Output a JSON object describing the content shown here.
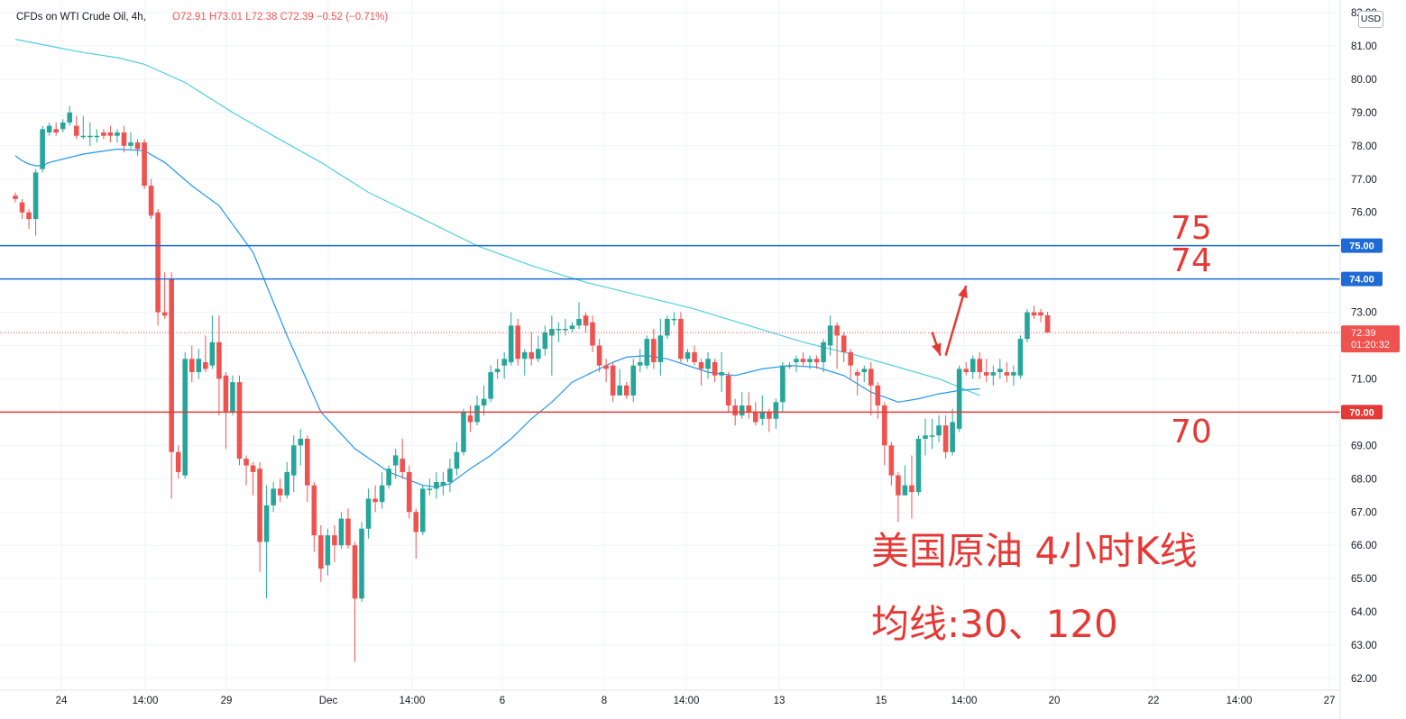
{
  "legend": {
    "symbol": "CFDs on WTI Crude Oil, 4h,",
    "open": "O72.91",
    "high": "H73.01",
    "low": "L72.38",
    "close": "C72.39",
    "change": "−0.52 (−0.71%)"
  },
  "currency_button": "USD",
  "annotations": {
    "level_75": "75",
    "level_74": "74",
    "level_70": "70",
    "title_line1": "美国原油 4小时K线",
    "title_line2": "均线:30、120"
  },
  "price_tags": {
    "current_price": "72.39",
    "countdown": "01:20:32",
    "line_75": "75.00",
    "line_74": "74.00",
    "line_70": "70.00"
  },
  "colors": {
    "up": "#26a69a",
    "down": "#ef5350",
    "ma30": "#2196f3",
    "ma120": "#4dd0e1",
    "line_blue": "#1e6bd6",
    "line_red": "#e53935",
    "annotation": "#e53935"
  },
  "chart_data": {
    "type": "candlestick",
    "interval": "4h",
    "ylim": [
      62.0,
      82.0
    ],
    "y_ticks": [
      "82.00",
      "81.00",
      "80.00",
      "79.00",
      "78.00",
      "77.00",
      "76.00",
      "75.00",
      "74.00",
      "73.00",
      "72.00",
      "71.00",
      "70.00",
      "69.00",
      "68.00",
      "67.00",
      "66.00",
      "65.00",
      "64.00",
      "63.00",
      "62.00"
    ],
    "x_ticks": [
      "24",
      "14:00",
      "29",
      "Dec",
      "14:00",
      "6",
      "8",
      "14:00",
      "13",
      "15",
      "14:00",
      "20",
      "22",
      "14:00",
      "27"
    ],
    "horizontal_lines": [
      {
        "value": 75.0,
        "color": "blue"
      },
      {
        "value": 74.0,
        "color": "blue"
      },
      {
        "value": 70.0,
        "color": "red"
      }
    ],
    "last_price": 72.39,
    "candles": [
      [
        76.5,
        76.4,
        76.6,
        76.3
      ],
      [
        76.3,
        76.0,
        76.4,
        75.8
      ],
      [
        76.0,
        75.8,
        76.1,
        75.5
      ],
      [
        75.8,
        77.2,
        77.3,
        75.3
      ],
      [
        77.3,
        78.5,
        78.6,
        77.2
      ],
      [
        78.4,
        78.6,
        78.7,
        78.3
      ],
      [
        78.5,
        78.4,
        78.7,
        78.3
      ],
      [
        78.5,
        78.7,
        78.8,
        78.4
      ],
      [
        78.7,
        79.0,
        79.2,
        78.6
      ],
      [
        78.6,
        78.3,
        78.9,
        78.2
      ],
      [
        78.3,
        78.3,
        78.9,
        78.2
      ],
      [
        78.3,
        78.3,
        78.7,
        78.0
      ],
      [
        78.3,
        78.3,
        78.5,
        78.1
      ],
      [
        78.4,
        78.3,
        78.5,
        78.2
      ],
      [
        78.4,
        78.3,
        78.6,
        78.1
      ],
      [
        78.3,
        78.4,
        78.5,
        78.1
      ],
      [
        78.4,
        78.0,
        78.6,
        77.8
      ],
      [
        78.0,
        78.1,
        78.4,
        77.9
      ],
      [
        78.1,
        77.9,
        78.2,
        77.7
      ],
      [
        78.1,
        76.8,
        78.2,
        76.7
      ],
      [
        76.8,
        75.9,
        77.0,
        75.8
      ],
      [
        76.0,
        73.0,
        76.1,
        72.6
      ],
      [
        73.0,
        72.9,
        74.2,
        72.8
      ],
      [
        74.0,
        68.8,
        74.2,
        67.4
      ],
      [
        68.8,
        68.2,
        69.0,
        68.0
      ],
      [
        68.1,
        71.6,
        71.8,
        68.0
      ],
      [
        71.6,
        71.2,
        72.0,
        70.9
      ],
      [
        71.2,
        71.6,
        71.9,
        71.0
      ],
      [
        71.5,
        71.3,
        72.3,
        71.2
      ],
      [
        71.4,
        72.1,
        72.9,
        71.3
      ],
      [
        72.1,
        71.0,
        72.9,
        69.9
      ],
      [
        71.1,
        70.0,
        71.2,
        68.9
      ],
      [
        70.0,
        70.9,
        71.1,
        69.9
      ],
      [
        70.9,
        68.6,
        71.1,
        68.4
      ],
      [
        68.6,
        68.4,
        68.7,
        67.8
      ],
      [
        68.4,
        68.2,
        68.5,
        67.5
      ],
      [
        68.3,
        66.1,
        68.5,
        65.2
      ],
      [
        66.1,
        67.2,
        67.8,
        64.4
      ],
      [
        67.2,
        67.7,
        67.9,
        67.0
      ],
      [
        67.7,
        67.5,
        68.0,
        67.3
      ],
      [
        67.5,
        68.2,
        68.5,
        67.4
      ],
      [
        68.1,
        69.0,
        69.3,
        67.6
      ],
      [
        69.0,
        69.2,
        69.5,
        68.4
      ],
      [
        69.2,
        67.8,
        69.3,
        67.3
      ],
      [
        67.8,
        66.3,
        67.9,
        65.8
      ],
      [
        66.3,
        65.3,
        66.6,
        64.9
      ],
      [
        65.4,
        66.3,
        66.5,
        65.1
      ],
      [
        66.3,
        66.0,
        66.6,
        65.5
      ],
      [
        66.0,
        66.8,
        67.0,
        65.9
      ],
      [
        66.8,
        66.0,
        67.1,
        65.9
      ],
      [
        66.0,
        64.4,
        66.1,
        62.5
      ],
      [
        64.4,
        66.5,
        66.7,
        64.3
      ],
      [
        66.5,
        67.4,
        67.7,
        66.2
      ],
      [
        67.4,
        67.3,
        67.8,
        67.0
      ],
      [
        67.3,
        67.8,
        68.2,
        67.1
      ],
      [
        67.8,
        68.3,
        68.4,
        67.7
      ],
      [
        68.4,
        68.7,
        68.9,
        68.0
      ],
      [
        68.6,
        68.2,
        69.2,
        68.0
      ],
      [
        68.2,
        67.0,
        68.4,
        66.8
      ],
      [
        67.0,
        66.4,
        67.1,
        65.6
      ],
      [
        66.4,
        67.7,
        67.8,
        66.3
      ],
      [
        67.7,
        67.7,
        68.0,
        67.5
      ],
      [
        67.7,
        67.9,
        68.2,
        67.4
      ],
      [
        67.8,
        67.9,
        68.2,
        67.5
      ],
      [
        67.9,
        68.3,
        68.6,
        67.6
      ],
      [
        68.3,
        68.8,
        69.1,
        68.1
      ],
      [
        68.8,
        70.0,
        70.1,
        68.7
      ],
      [
        69.9,
        69.7,
        70.2,
        69.4
      ],
      [
        69.7,
        70.2,
        70.5,
        69.6
      ],
      [
        70.2,
        70.4,
        70.8,
        69.9
      ],
      [
        70.4,
        71.2,
        71.4,
        70.3
      ],
      [
        71.2,
        71.3,
        71.6,
        71.0
      ],
      [
        71.4,
        71.6,
        71.8,
        71.0
      ],
      [
        71.5,
        72.6,
        73.0,
        71.4
      ],
      [
        72.6,
        71.6,
        72.8,
        71.4
      ],
      [
        71.6,
        71.8,
        71.9,
        71.1
      ],
      [
        71.8,
        71.6,
        72.4,
        71.4
      ],
      [
        71.6,
        71.9,
        72.3,
        71.5
      ],
      [
        71.9,
        72.4,
        72.6,
        71.7
      ],
      [
        72.3,
        72.5,
        72.9,
        71.1
      ],
      [
        72.5,
        72.5,
        72.7,
        72.1
      ],
      [
        72.5,
        72.5,
        72.8,
        72.3
      ],
      [
        72.5,
        72.6,
        72.7,
        72.4
      ],
      [
        72.6,
        72.8,
        73.3,
        72.5
      ],
      [
        72.9,
        72.6,
        73.0,
        72.4
      ],
      [
        72.7,
        72.0,
        72.9,
        71.8
      ],
      [
        72.0,
        71.4,
        72.2,
        71.2
      ],
      [
        71.4,
        71.3,
        71.6,
        70.9
      ],
      [
        71.4,
        70.5,
        71.5,
        70.3
      ],
      [
        70.5,
        70.8,
        71.3,
        70.5
      ],
      [
        70.8,
        70.5,
        70.9,
        70.4
      ],
      [
        70.5,
        71.4,
        71.6,
        70.3
      ],
      [
        71.4,
        71.5,
        71.9,
        71.2
      ],
      [
        71.4,
        72.2,
        72.3,
        71.3
      ],
      [
        72.2,
        71.5,
        72.5,
        71.3
      ],
      [
        71.5,
        72.3,
        72.8,
        71.1
      ],
      [
        72.3,
        72.8,
        72.9,
        72.2
      ],
      [
        72.8,
        72.8,
        73.0,
        72.6
      ],
      [
        72.8,
        71.6,
        73.0,
        71.5
      ],
      [
        71.6,
        71.8,
        71.9,
        71.5
      ],
      [
        71.8,
        71.5,
        72.0,
        71.4
      ],
      [
        71.5,
        71.3,
        71.6,
        70.8
      ],
      [
        71.3,
        71.6,
        71.8,
        71.0
      ],
      [
        71.5,
        71.1,
        71.6,
        70.9
      ],
      [
        71.1,
        71.2,
        71.8,
        70.6
      ],
      [
        71.1,
        70.2,
        71.2,
        70.0
      ],
      [
        70.2,
        69.9,
        70.4,
        69.6
      ],
      [
        69.9,
        70.2,
        70.6,
        69.8
      ],
      [
        70.2,
        70.0,
        70.6,
        69.8
      ],
      [
        70.0,
        69.7,
        70.3,
        69.6
      ],
      [
        69.8,
        70.0,
        70.5,
        69.6
      ],
      [
        70.0,
        69.8,
        70.1,
        69.4
      ],
      [
        69.8,
        70.3,
        70.4,
        69.5
      ],
      [
        70.3,
        71.4,
        71.5,
        70.0
      ],
      [
        71.4,
        71.4,
        71.5,
        71.3
      ],
      [
        71.5,
        71.6,
        71.7,
        71.2
      ],
      [
        71.6,
        71.5,
        71.8,
        71.4
      ],
      [
        71.5,
        71.6,
        71.7,
        71.3
      ],
      [
        71.6,
        71.5,
        71.7,
        71.3
      ],
      [
        71.5,
        72.1,
        72.2,
        71.2
      ],
      [
        72.0,
        72.6,
        72.9,
        71.7
      ],
      [
        72.6,
        72.3,
        72.7,
        71.3
      ],
      [
        72.3,
        71.8,
        72.4,
        71.5
      ],
      [
        71.8,
        71.4,
        71.9,
        71.0
      ],
      [
        71.2,
        71.1,
        71.3,
        70.5
      ],
      [
        71.2,
        71.3,
        71.4,
        70.9
      ],
      [
        71.3,
        70.8,
        71.5,
        69.9
      ],
      [
        70.8,
        70.2,
        70.9,
        69.8
      ],
      [
        70.2,
        69.0,
        70.3,
        68.4
      ],
      [
        69.0,
        68.1,
        69.1,
        67.8
      ],
      [
        68.1,
        67.5,
        68.2,
        66.7
      ],
      [
        67.5,
        67.8,
        68.4,
        67.5
      ],
      [
        67.8,
        67.6,
        68.7,
        66.8
      ],
      [
        67.6,
        69.2,
        69.3,
        67.5
      ],
      [
        69.2,
        69.3,
        69.8,
        68.7
      ],
      [
        69.3,
        69.3,
        69.8,
        68.9
      ],
      [
        69.3,
        69.6,
        69.9,
        69.1
      ],
      [
        69.6,
        68.8,
        69.9,
        68.6
      ],
      [
        68.8,
        69.7,
        70.1,
        68.7
      ],
      [
        69.5,
        71.3,
        71.4,
        69.4
      ],
      [
        71.3,
        71.2,
        71.5,
        71.1
      ],
      [
        71.2,
        71.6,
        71.7,
        71.0
      ],
      [
        71.6,
        71.2,
        71.8,
        71.0
      ],
      [
        71.2,
        71.1,
        71.6,
        70.9
      ],
      [
        71.1,
        71.2,
        71.4,
        70.8
      ],
      [
        71.2,
        71.3,
        71.6,
        71.0
      ],
      [
        71.2,
        71.1,
        71.5,
        70.9
      ],
      [
        71.1,
        71.2,
        71.4,
        70.8
      ],
      [
        71.1,
        72.2,
        72.3,
        71.0
      ],
      [
        72.2,
        73.0,
        73.1,
        72.1
      ],
      [
        73.0,
        72.9,
        73.2,
        72.8
      ],
      [
        73.0,
        72.9,
        73.1,
        72.7
      ],
      [
        72.91,
        72.39,
        73.01,
        72.38
      ]
    ],
    "ma30": [
      [
        0,
        77.7
      ],
      [
        1,
        77.55
      ],
      [
        2,
        77.45
      ],
      [
        3,
        77.4
      ],
      [
        4,
        77.4
      ],
      [
        5,
        77.5
      ],
      [
        10,
        77.75
      ],
      [
        15,
        77.9
      ],
      [
        19,
        77.85
      ],
      [
        22,
        77.5
      ],
      [
        26,
        76.8
      ],
      [
        30,
        76.2
      ],
      [
        35,
        74.8
      ],
      [
        40,
        72.3
      ],
      [
        45,
        70.0
      ],
      [
        50,
        68.9
      ],
      [
        55,
        68.2
      ],
      [
        60,
        67.8
      ],
      [
        62,
        67.75
      ],
      [
        64,
        67.85
      ],
      [
        67,
        68.3
      ],
      [
        70,
        68.7
      ],
      [
        73,
        69.2
      ],
      [
        76,
        69.8
      ],
      [
        79,
        70.3
      ],
      [
        82,
        70.9
      ],
      [
        85,
        71.2
      ],
      [
        88,
        71.5
      ],
      [
        90,
        71.65
      ],
      [
        93,
        71.7
      ],
      [
        96,
        71.6
      ],
      [
        99,
        71.4
      ],
      [
        102,
        71.2
      ],
      [
        106,
        71.1
      ],
      [
        110,
        71.3
      ],
      [
        114,
        71.4
      ],
      [
        118,
        71.35
      ],
      [
        122,
        71.1
      ],
      [
        126,
        70.6
      ],
      [
        130,
        70.3
      ],
      [
        133,
        70.4
      ],
      [
        136,
        70.55
      ],
      [
        139,
        70.65
      ],
      [
        142,
        70.7
      ]
    ],
    "ma120": [
      [
        0,
        81.2
      ],
      [
        5,
        81.0
      ],
      [
        10,
        80.8
      ],
      [
        15,
        80.65
      ],
      [
        19,
        80.45
      ],
      [
        25,
        79.9
      ],
      [
        32,
        79.0
      ],
      [
        38,
        78.3
      ],
      [
        45,
        77.5
      ],
      [
        52,
        76.6
      ],
      [
        60,
        75.8
      ],
      [
        68,
        75.0
      ],
      [
        76,
        74.4
      ],
      [
        84,
        73.9
      ],
      [
        92,
        73.5
      ],
      [
        100,
        73.1
      ],
      [
        108,
        72.6
      ],
      [
        116,
        72.1
      ],
      [
        124,
        71.7
      ],
      [
        130,
        71.35
      ],
      [
        136,
        71.0
      ],
      [
        142,
        70.5
      ]
    ],
    "arrows": [
      {
        "from": [
          135.0,
          72.4
        ],
        "to": [
          136.2,
          71.7
        ],
        "color": "#e53935"
      },
      {
        "from": [
          137.0,
          71.7
        ],
        "to": [
          140.0,
          73.8
        ],
        "color": "#e53935"
      }
    ]
  }
}
